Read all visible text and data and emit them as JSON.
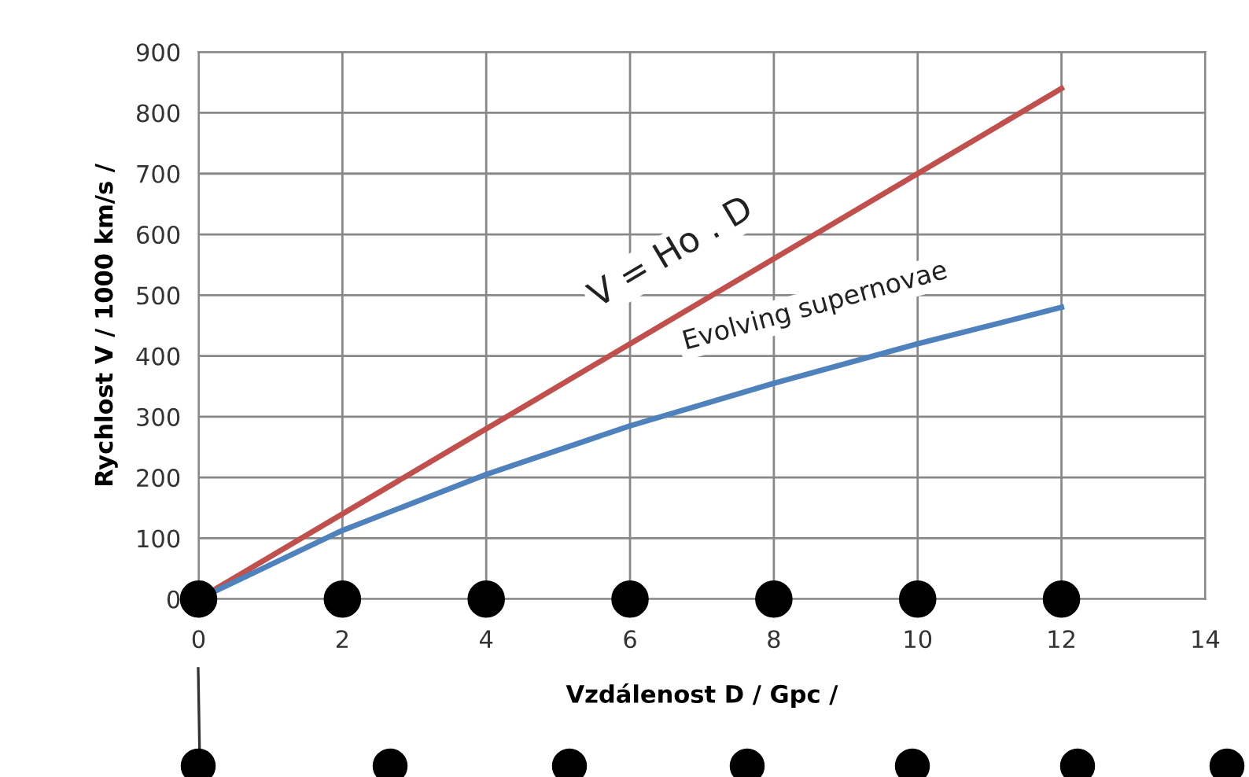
{
  "chart_data": {
    "type": "line",
    "xlabel": "Vzdálenost D / Gpc /",
    "ylabel": "Rychlost V / 1000 km/s /",
    "x": [
      0,
      2,
      4,
      6,
      8,
      10,
      12
    ],
    "series": [
      {
        "name": "V = Ho . D",
        "color": "#c0504d",
        "values": [
          0,
          140,
          280,
          420,
          560,
          700,
          840
        ]
      },
      {
        "name": "Evolving supernovae",
        "color": "#4f81bd",
        "values": [
          0,
          113,
          205,
          285,
          355,
          420,
          480
        ]
      },
      {
        "type": "scatter",
        "color": "#000000",
        "marker": "circle",
        "values": [
          0,
          0,
          0,
          0,
          0,
          0,
          0
        ]
      }
    ],
    "xlim": [
      0,
      14
    ],
    "xticks": [
      0,
      2,
      4,
      6,
      8,
      10,
      12,
      14
    ],
    "ylim": [
      0,
      900
    ],
    "yticks": [
      0,
      100,
      200,
      300,
      400,
      500,
      600,
      700,
      800,
      900
    ],
    "grid": true,
    "marker": "none",
    "line_style": "solid"
  }
}
